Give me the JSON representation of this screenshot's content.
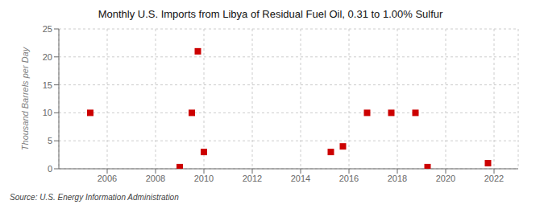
{
  "chart_data": {
    "type": "scatter",
    "title": "Monthly U.S. Imports from Libya of Residual Fuel Oil, 0.31 to 1.00% Sulfur",
    "ylabel": "Thousand Barrels per Day",
    "annotations": [
      "Source: U.S. Energy Information Administration"
    ],
    "x": [
      2005.3,
      2009.0,
      2009.5,
      2009.75,
      2010.0,
      2015.25,
      2015.75,
      2016.75,
      2017.75,
      2018.75,
      2019.25,
      2021.75
    ],
    "values": [
      10,
      0.3,
      10,
      21,
      3,
      3,
      4,
      10,
      10,
      10,
      0.3,
      1
    ],
    "color": "#cc0000",
    "marker": "square",
    "xlim": [
      2004.0,
      2023.0
    ],
    "ylim": [
      0,
      25
    ],
    "xticks": [
      2006,
      2008,
      2010,
      2012,
      2014,
      2016,
      2018,
      2020,
      2022
    ],
    "yticks": [
      0,
      5,
      10,
      15,
      20,
      25
    ],
    "grid": true
  }
}
